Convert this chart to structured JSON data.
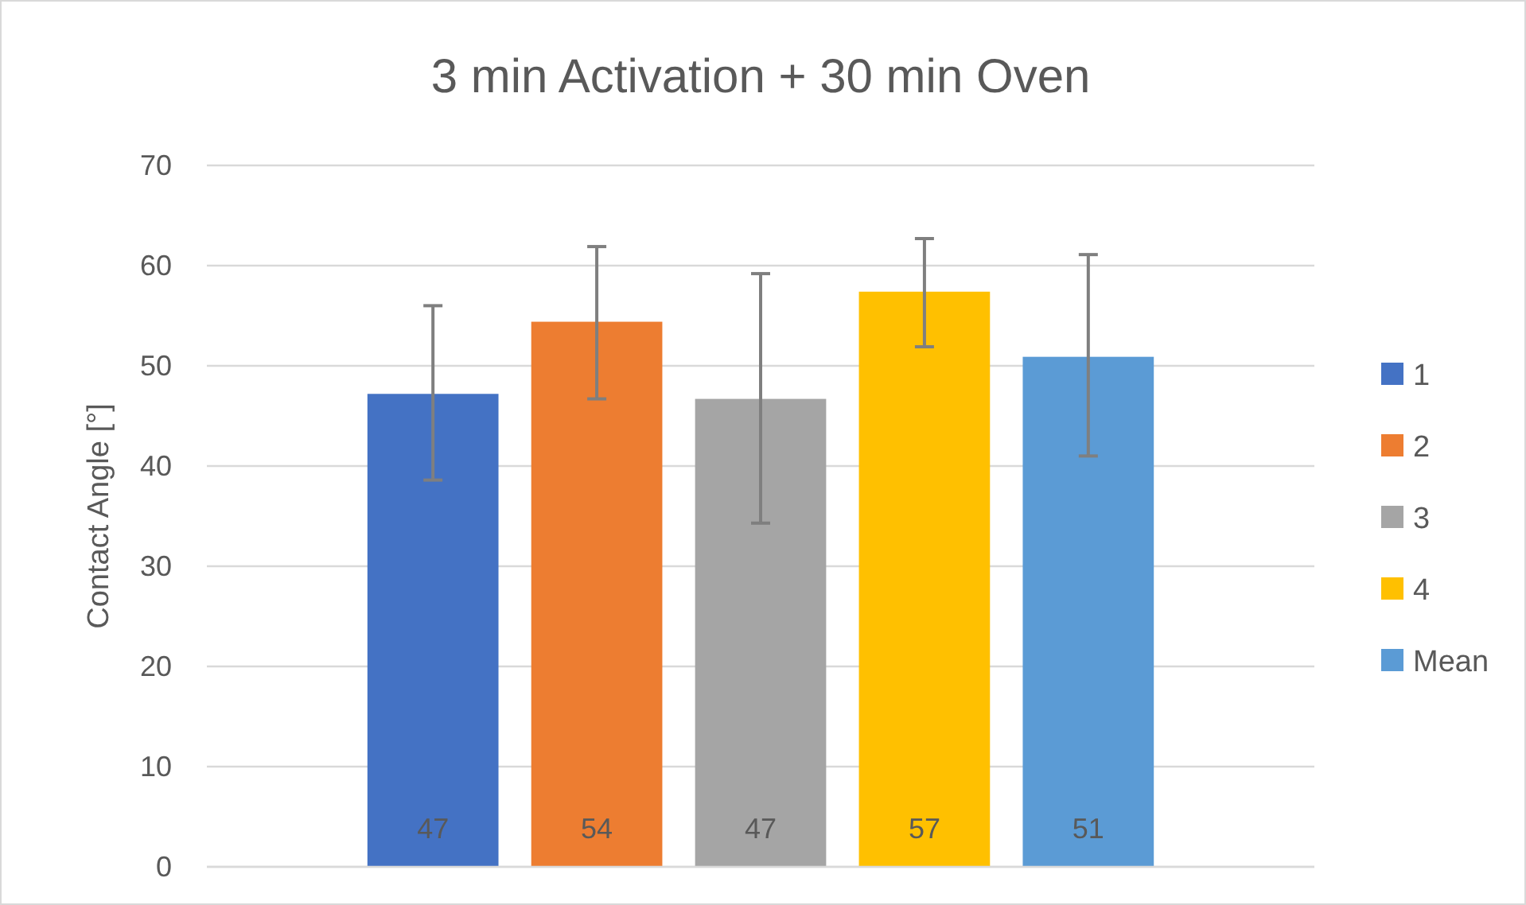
{
  "chart_data": {
    "type": "bar",
    "title": "3 min Activation + 30 min Oven",
    "ylabel": "Contact Angle [°]",
    "categories": [
      null
    ],
    "series": [
      {
        "name": "1",
        "color": "#4472c4",
        "values": [
          47.2
        ],
        "errors": [
          [
            38.6,
            56.0
          ]
        ],
        "value_labels": [
          "47"
        ]
      },
      {
        "name": "2",
        "color": "#ed7d31",
        "values": [
          54.4
        ],
        "errors": [
          [
            46.7,
            61.9
          ]
        ],
        "value_labels": [
          "54"
        ]
      },
      {
        "name": "3",
        "color": "#a5a5a5",
        "values": [
          46.7
        ],
        "errors": [
          [
            34.3,
            59.2
          ]
        ],
        "value_labels": [
          "47"
        ]
      },
      {
        "name": "4",
        "color": "#ffc000",
        "values": [
          57.4
        ],
        "errors": [
          [
            51.9,
            62.7
          ]
        ],
        "value_labels": [
          "57"
        ]
      },
      {
        "name": "Mean",
        "color": "#5b9bd5",
        "values": [
          50.9
        ],
        "errors": [
          [
            41.0,
            61.1
          ]
        ],
        "value_labels": [
          "51"
        ]
      }
    ],
    "ylim": [
      0,
      70
    ],
    "yticks": [
      0,
      10,
      20,
      30,
      40,
      50,
      60,
      70
    ],
    "grid": "y",
    "legend": "right"
  }
}
